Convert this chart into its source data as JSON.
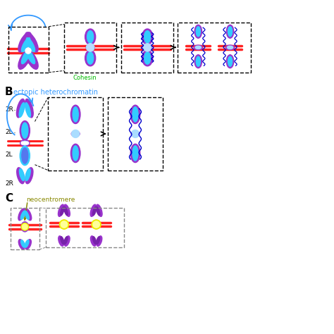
{
  "bg_color": "#ffffff",
  "purple": "#9933CC",
  "purple2": "#AA44DD",
  "cyan": "#33CCFF",
  "cyan2": "#66DDFF",
  "dark_blue": "#0000CC",
  "mid_blue": "#3355CC",
  "red": "#FF2222",
  "green": "#00BB00",
  "yellow": "#EEEE00",
  "blue_line": "#3399FF",
  "olive": "#888800",
  "light_blue": "#AADDFF",
  "cohesin_label": "Cohesin",
  "ectopic_label": "ectopic heterochromatin",
  "neo_label": "neocentromere",
  "label_B": "B",
  "label_C": "C",
  "label_2R_top": "2R",
  "label_2L_mid": "2L",
  "label_2L_bot": "2L",
  "label_2R_bot": "2R"
}
